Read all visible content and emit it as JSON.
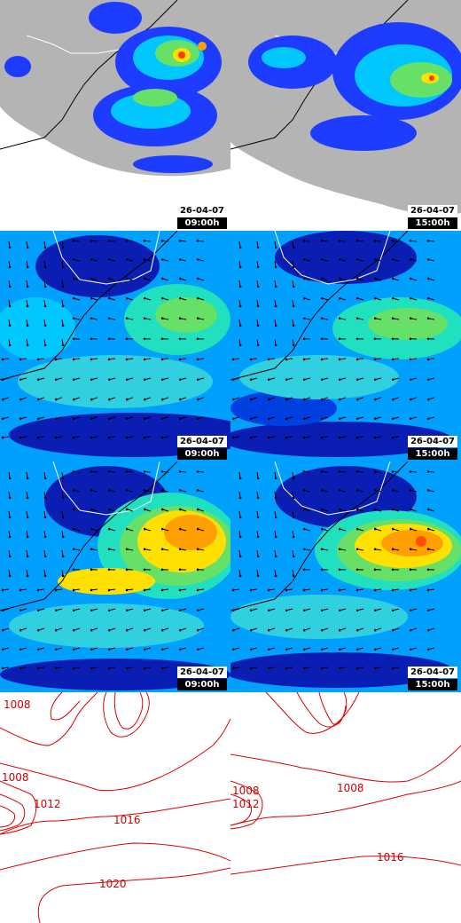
{
  "panels": [
    {
      "row": "precipitation",
      "column": "left",
      "date": "26-04-07",
      "time": "09:00h"
    },
    {
      "row": "precipitation",
      "column": "right",
      "date": "26-04-07",
      "time": "15:00h"
    },
    {
      "row": "wind-mean",
      "column": "left",
      "date": "26-04-07",
      "time": "09:00h"
    },
    {
      "row": "wind-mean",
      "column": "right",
      "date": "26-04-07",
      "time": "15:00h"
    },
    {
      "row": "wind-gust",
      "column": "left",
      "date": "26-04-07",
      "time": "09:00h"
    },
    {
      "row": "wind-gust",
      "column": "right",
      "date": "26-04-07",
      "time": "15:00h"
    }
  ],
  "pressure_left_labels": [
    "1008",
    "1008",
    "1012",
    "1016",
    "1020"
  ],
  "pressure_right_labels": [
    "1008",
    "1008",
    "1012",
    "1016"
  ],
  "colors": {
    "land": "#b4b4b4",
    "sea": "#ffffff",
    "precip_low": "#1e3cff",
    "precip_high": "#ff3c00",
    "wind_low": "#0a1eb4",
    "wind_high": "#ff5000",
    "isobar": "#dd0000"
  }
}
